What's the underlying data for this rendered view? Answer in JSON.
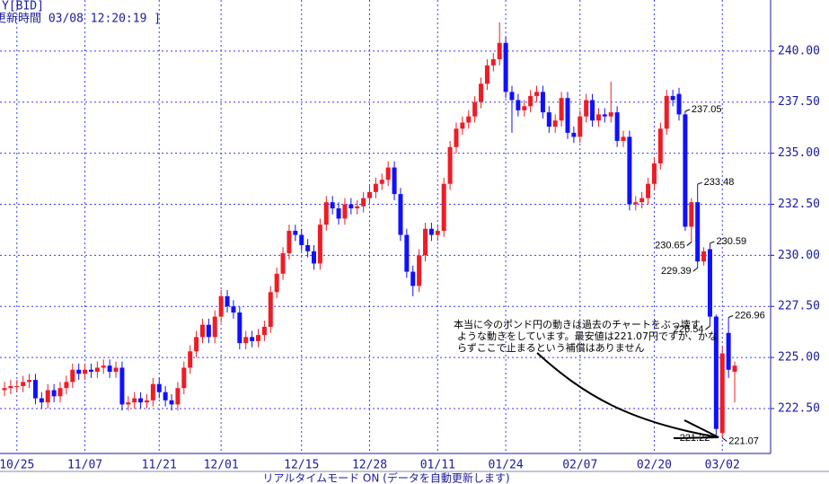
{
  "header": {
    "symbol": "Y[BID]",
    "update_time": "更新時間 03/08 12:20:19 ]"
  },
  "footer": "リアルタイムモード ON (データを自動更新します)",
  "chart_data": {
    "type": "candlestick",
    "up_color": "#ee1c25",
    "down_color": "#1010ff",
    "ylim": [
      220.3,
      242.5
    ],
    "yticks": [
      {
        "value": 222.5,
        "label": "222.50"
      },
      {
        "value": 225,
        "label": "225.00"
      },
      {
        "value": 227.5,
        "label": "227.50"
      },
      {
        "value": 230,
        "label": "230.00"
      },
      {
        "value": 232.5,
        "label": "232.50"
      },
      {
        "value": 235,
        "label": "235.00"
      },
      {
        "value": 237.5,
        "label": "237.50"
      },
      {
        "value": 240,
        "label": "240.00"
      }
    ],
    "grid": true,
    "categories": [
      null,
      null,
      "10/25",
      null,
      null,
      null,
      null,
      null,
      null,
      null,
      null,
      null,
      null,
      "11/07",
      null,
      null,
      null,
      null,
      null,
      null,
      null,
      null,
      null,
      null,
      null,
      "11/21",
      null,
      null,
      null,
      null,
      null,
      null,
      null,
      null,
      null,
      "12/01",
      null,
      null,
      null,
      null,
      null,
      null,
      null,
      null,
      null,
      null,
      null,
      null,
      "12/15",
      null,
      null,
      null,
      null,
      null,
      null,
      null,
      null,
      null,
      null,
      "12/28",
      null,
      null,
      null,
      null,
      null,
      null,
      null,
      null,
      null,
      null,
      "01/11",
      null,
      null,
      null,
      null,
      null,
      null,
      null,
      null,
      null,
      null,
      "01/24",
      null,
      null,
      null,
      null,
      null,
      null,
      null,
      null,
      null,
      null,
      null,
      "02/07",
      null,
      null,
      null,
      null,
      null,
      null,
      null,
      null,
      null,
      null,
      null,
      "02/20",
      null,
      null,
      null,
      null,
      null,
      null,
      null,
      null,
      null,
      null,
      "03/02",
      null,
      null,
      null
    ],
    "candles": [
      [
        223.4,
        223.8,
        223.1,
        223.5
      ],
      [
        223.5,
        223.9,
        223.2,
        223.6
      ],
      [
        223.6,
        223.9,
        223.3,
        223.6
      ],
      [
        223.6,
        224.1,
        223.3,
        223.8
      ],
      [
        223.8,
        224.2,
        223.5,
        223.9
      ],
      [
        223.9,
        224.2,
        222.7,
        223.0
      ],
      [
        223.0,
        223.3,
        222.5,
        222.8
      ],
      [
        222.8,
        223.7,
        222.5,
        223.4
      ],
      [
        223.4,
        223.7,
        222.8,
        223.1
      ],
      [
        223.1,
        223.8,
        222.8,
        223.5
      ],
      [
        223.5,
        224.1,
        223.2,
        223.8
      ],
      [
        223.8,
        224.7,
        223.5,
        224.4
      ],
      [
        224.4,
        224.7,
        223.9,
        224.2
      ],
      [
        224.2,
        224.7,
        223.9,
        224.4
      ],
      [
        224.4,
        224.7,
        224.0,
        224.3
      ],
      [
        224.3,
        224.8,
        224.0,
        224.5
      ],
      [
        224.5,
        224.9,
        224.2,
        224.6
      ],
      [
        224.6,
        224.9,
        224.0,
        224.3
      ],
      [
        224.3,
        224.8,
        224.0,
        224.5
      ],
      [
        224.5,
        224.8,
        222.4,
        222.7
      ],
      [
        222.7,
        223.1,
        222.4,
        222.8
      ],
      [
        222.8,
        223.3,
        222.5,
        223.0
      ],
      [
        223.0,
        223.3,
        222.5,
        222.8
      ],
      [
        222.8,
        223.2,
        222.5,
        222.9
      ],
      [
        222.9,
        224.0,
        222.6,
        223.7
      ],
      [
        223.7,
        224.0,
        223.0,
        223.3
      ],
      [
        223.3,
        223.6,
        222.6,
        222.9
      ],
      [
        222.9,
        223.2,
        222.4,
        222.7
      ],
      [
        222.7,
        223.8,
        222.4,
        223.5
      ],
      [
        223.5,
        224.8,
        223.2,
        224.5
      ],
      [
        224.5,
        225.6,
        224.2,
        225.3
      ],
      [
        225.3,
        226.3,
        225.0,
        226.0
      ],
      [
        226.0,
        226.9,
        225.7,
        226.6
      ],
      [
        226.6,
        226.9,
        225.7,
        226.0
      ],
      [
        226.0,
        227.3,
        225.7,
        227.0
      ],
      [
        227.0,
        228.3,
        226.7,
        228.0
      ],
      [
        228.0,
        228.3,
        227.2,
        227.5
      ],
      [
        227.5,
        227.8,
        226.9,
        227.2
      ],
      [
        227.2,
        227.5,
        225.4,
        225.7
      ],
      [
        225.7,
        226.3,
        225.4,
        226.0
      ],
      [
        226.0,
        226.3,
        225.5,
        225.8
      ],
      [
        225.8,
        226.4,
        225.5,
        226.1
      ],
      [
        226.1,
        226.8,
        225.8,
        226.5
      ],
      [
        226.5,
        228.5,
        226.2,
        228.2
      ],
      [
        228.2,
        229.4,
        227.9,
        229.1
      ],
      [
        229.1,
        230.4,
        228.8,
        230.1
      ],
      [
        230.1,
        231.5,
        229.8,
        231.2
      ],
      [
        231.2,
        231.5,
        230.7,
        231.0
      ],
      [
        231.0,
        231.3,
        230.2,
        230.5
      ],
      [
        230.5,
        230.8,
        229.9,
        230.2
      ],
      [
        230.2,
        230.5,
        229.3,
        229.6
      ],
      [
        229.6,
        231.8,
        229.3,
        231.5
      ],
      [
        231.5,
        232.9,
        231.2,
        232.6
      ],
      [
        232.6,
        232.9,
        232.0,
        232.3
      ],
      [
        232.3,
        232.6,
        231.5,
        231.8
      ],
      [
        231.8,
        232.8,
        231.5,
        232.5
      ],
      [
        232.5,
        232.8,
        232.0,
        232.3
      ],
      [
        232.3,
        232.7,
        232.0,
        232.4
      ],
      [
        232.4,
        233.1,
        232.1,
        232.8
      ],
      [
        232.8,
        233.4,
        232.5,
        233.1
      ],
      [
        233.1,
        233.8,
        232.8,
        233.5
      ],
      [
        233.5,
        234.0,
        233.2,
        233.7
      ],
      [
        233.7,
        234.6,
        233.4,
        234.3
      ],
      [
        234.3,
        234.6,
        232.7,
        233.0
      ],
      [
        233.0,
        233.3,
        230.7,
        231.0
      ],
      [
        231.0,
        231.3,
        228.9,
        229.2
      ],
      [
        229.2,
        229.5,
        228.0,
        228.5
      ],
      [
        228.5,
        230.3,
        228.2,
        230.0
      ],
      [
        230.0,
        231.6,
        229.7,
        231.3
      ],
      [
        231.3,
        231.6,
        230.7,
        231.0
      ],
      [
        231.0,
        231.5,
        230.7,
        231.2
      ],
      [
        231.2,
        233.8,
        230.9,
        233.5
      ],
      [
        233.5,
        235.6,
        233.2,
        235.3
      ],
      [
        235.3,
        236.5,
        235.0,
        236.2
      ],
      [
        236.2,
        236.8,
        235.9,
        236.5
      ],
      [
        236.5,
        237.1,
        236.2,
        236.8
      ],
      [
        236.8,
        237.8,
        236.5,
        237.5
      ],
      [
        237.5,
        238.7,
        237.2,
        238.4
      ],
      [
        238.4,
        239.6,
        238.1,
        239.3
      ],
      [
        239.3,
        239.9,
        239.0,
        239.6
      ],
      [
        239.6,
        241.4,
        239.3,
        240.4
      ],
      [
        240.4,
        240.7,
        237.7,
        238.0
      ],
      [
        238.0,
        238.3,
        236.0,
        237.6
      ],
      [
        237.6,
        237.9,
        236.8,
        237.1
      ],
      [
        237.1,
        237.6,
        236.8,
        237.3
      ],
      [
        237.3,
        238.1,
        237.0,
        237.8
      ],
      [
        237.8,
        238.3,
        237.5,
        238.0
      ],
      [
        238.0,
        238.3,
        236.7,
        237.0
      ],
      [
        237.0,
        237.3,
        236.0,
        236.3
      ],
      [
        236.3,
        236.9,
        236.0,
        236.6
      ],
      [
        236.6,
        238.0,
        236.3,
        237.7
      ],
      [
        237.7,
        238.0,
        235.7,
        236.0
      ],
      [
        236.0,
        236.3,
        235.5,
        235.8
      ],
      [
        235.8,
        237.1,
        235.5,
        236.8
      ],
      [
        236.8,
        237.9,
        236.5,
        237.6
      ],
      [
        237.6,
        237.9,
        236.3,
        236.6
      ],
      [
        236.6,
        237.2,
        236.3,
        236.9
      ],
      [
        236.9,
        237.2,
        236.5,
        236.8
      ],
      [
        236.8,
        238.5,
        236.5,
        237.0
      ],
      [
        237.0,
        237.3,
        235.3,
        235.6
      ],
      [
        235.6,
        236.1,
        235.3,
        235.8
      ],
      [
        235.8,
        236.1,
        232.2,
        232.5
      ],
      [
        232.5,
        232.9,
        232.2,
        232.6
      ],
      [
        232.6,
        233.1,
        232.3,
        232.8
      ],
      [
        232.8,
        233.8,
        232.5,
        233.5
      ],
      [
        233.5,
        234.8,
        233.2,
        234.5
      ],
      [
        234.5,
        236.5,
        234.2,
        236.2
      ],
      [
        236.2,
        238.1,
        235.9,
        237.8
      ],
      [
        237.8,
        238.1,
        237.3,
        237.6
      ],
      [
        237.9,
        238.2,
        236.6,
        236.9
      ],
      [
        236.9,
        237.05,
        231.2,
        231.4
      ],
      [
        231.4,
        232.8,
        230.65,
        232.6
      ],
      [
        232.6,
        233.48,
        229.39,
        229.7
      ],
      [
        229.7,
        230.4,
        229.5,
        230.2
      ],
      [
        230.3,
        230.59,
        226.54,
        227.0
      ],
      [
        227.0,
        227.1,
        221.22,
        221.5
      ],
      [
        221.3,
        225.5,
        221.07,
        225.2
      ],
      [
        226.2,
        226.96,
        224.0,
        224.4
      ],
      [
        224.3,
        224.8,
        222.8,
        224.6
      ]
    ],
    "price_labels": [
      237.05,
      233.48,
      230.65,
      229.39,
      230.59,
      226.54,
      226.96,
      221.22,
      221.07
    ],
    "annotation": [
      "本当に今のポンド円の動きは過去のチャートをぶっ壊す",
      "ような動きをしています。最安値は221.07円ですが、かな",
      "らずここで止まるという補償はありません"
    ]
  }
}
